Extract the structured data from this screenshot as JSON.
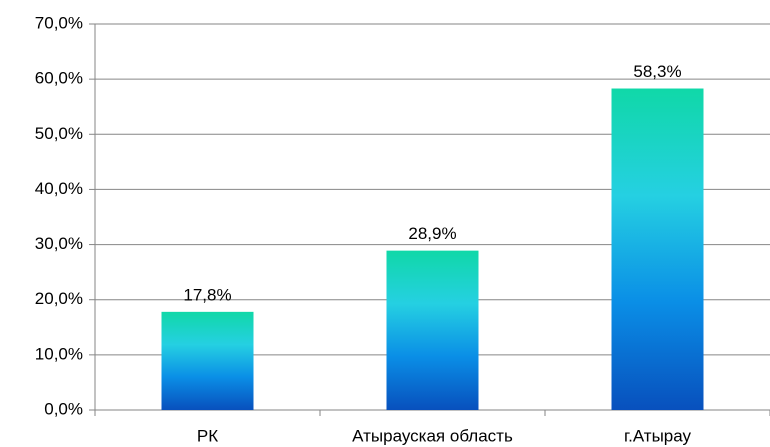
{
  "chart_data": {
    "type": "bar",
    "categories": [
      "РК",
      "Атырауская область",
      "г.Атырау"
    ],
    "values": [
      17.8,
      28.9,
      58.3
    ],
    "value_labels": [
      "17,8%",
      "28,9%",
      "58,3%"
    ],
    "gradient": [
      "#10d8a8",
      "#25d0e2",
      "#0a8ee6",
      "#0850bd"
    ],
    "ylim": [
      0,
      70
    ],
    "yticks": [
      {
        "value": 0,
        "label": "0,0%"
      },
      {
        "value": 10,
        "label": "10,0%"
      },
      {
        "value": 20,
        "label": "20,0%"
      },
      {
        "value": 30,
        "label": "30,0%"
      },
      {
        "value": 40,
        "label": "40,0%"
      },
      {
        "value": 50,
        "label": "50,0%"
      },
      {
        "value": 60,
        "label": "60,0%"
      },
      {
        "value": 70,
        "label": "70,0%"
      }
    ],
    "grid": true
  }
}
